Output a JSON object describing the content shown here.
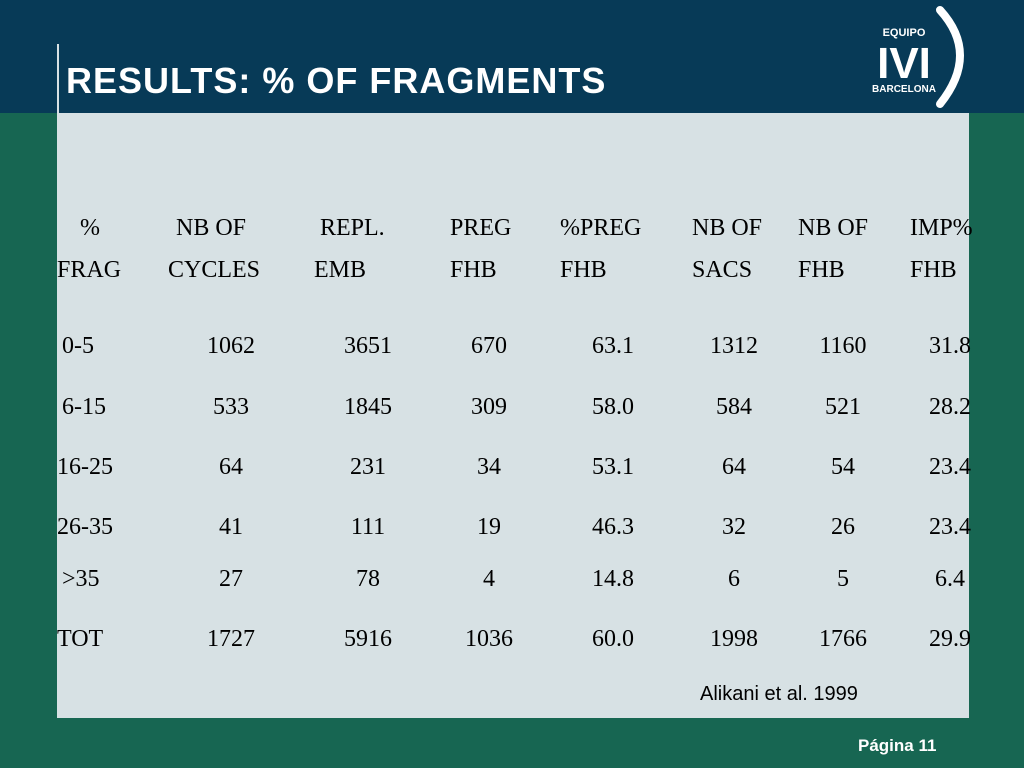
{
  "slide": {
    "title": "RESULTS: % OF FRAGMENTS",
    "citation": "Alikani et al. 1999",
    "page_label": "Página 11",
    "colors": {
      "header": "#073a57",
      "background": "#176652",
      "panel": "#d7e1e4"
    }
  },
  "logo": {
    "top_text": "EQUIPO",
    "main_text": "IVI",
    "bottom_text": "BARCELONA"
  },
  "table": {
    "headers": [
      {
        "line1": "%",
        "line2": "FRAG"
      },
      {
        "line1": "NB OF",
        "line2": "CYCLES"
      },
      {
        "line1": "REPL.",
        "line2": "EMB"
      },
      {
        "line1": "PREG",
        "line2": "FHB"
      },
      {
        "line1": "%PREG",
        "line2": "FHB"
      },
      {
        "line1": "NB OF",
        "line2": "SACS"
      },
      {
        "line1": "NB OF",
        "line2": "FHB"
      },
      {
        "line1": "IMP%",
        "line2": "FHB"
      }
    ],
    "rows": [
      [
        "0-5",
        "1062",
        "3651",
        "670",
        "63.1",
        "1312",
        "1160",
        "31.8"
      ],
      [
        "6-15",
        "533",
        "1845",
        "309",
        "58.0",
        "584",
        "521",
        "28.2"
      ],
      [
        "16-25",
        "64",
        "231",
        "34",
        "53.1",
        "64",
        "54",
        "23.4"
      ],
      [
        "26-35",
        "41",
        "111",
        "19",
        "46.3",
        "32",
        "26",
        "23.4"
      ],
      [
        ">35",
        "27",
        "78",
        "4",
        "14.8",
        "6",
        "5",
        "6.4"
      ],
      [
        "TOT",
        "1727",
        "5916",
        "1036",
        "60.0",
        "1998",
        "1766",
        "29.9"
      ]
    ]
  }
}
